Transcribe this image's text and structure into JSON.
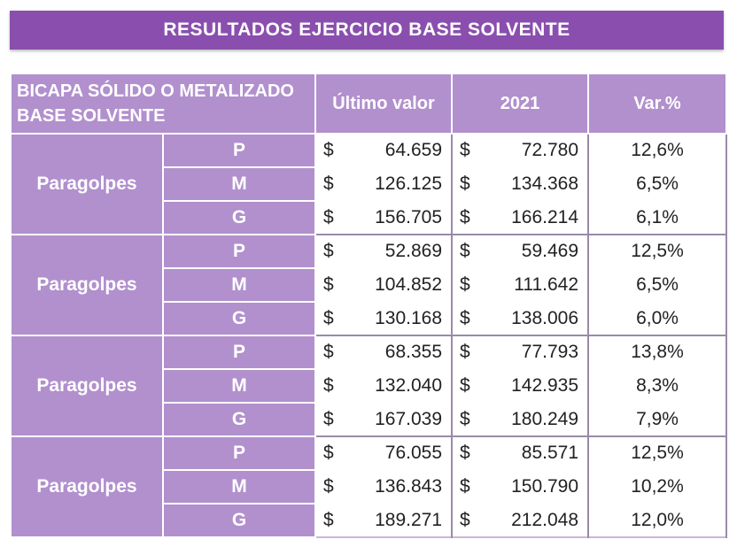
{
  "title": "RESULTADOS EJERCICIO BASE SOLVENTE",
  "table": {
    "header": {
      "title_line1": "BICAPA SÓLIDO O METALIZADO",
      "title_line2": "BASE SOLVENTE",
      "col_last": "Último valor",
      "col_year": "2021",
      "col_var": "Var.%"
    },
    "currency": "$",
    "groups": [
      {
        "label": "Paragolpes",
        "rows": [
          {
            "size": "P",
            "last": "64.659",
            "year": "72.780",
            "var": "12,6%"
          },
          {
            "size": "M",
            "last": "126.125",
            "year": "134.368",
            "var": "6,5%"
          },
          {
            "size": "G",
            "last": "156.705",
            "year": "166.214",
            "var": "6,1%"
          }
        ]
      },
      {
        "label": "Paragolpes",
        "rows": [
          {
            "size": "P",
            "last": "52.869",
            "year": "59.469",
            "var": "12,5%"
          },
          {
            "size": "M",
            "last": "104.852",
            "year": "111.642",
            "var": "6,5%"
          },
          {
            "size": "G",
            "last": "130.168",
            "year": "138.006",
            "var": "6,0%"
          }
        ]
      },
      {
        "label": "Paragolpes",
        "rows": [
          {
            "size": "P",
            "last": "68.355",
            "year": "77.793",
            "var": "13,8%"
          },
          {
            "size": "M",
            "last": "132.040",
            "year": "142.935",
            "var": "8,3%"
          },
          {
            "size": "G",
            "last": "167.039",
            "year": "180.249",
            "var": "7,9%"
          }
        ]
      },
      {
        "label": "Paragolpes",
        "rows": [
          {
            "size": "P",
            "last": "76.055",
            "year": "85.571",
            "var": "12,5%"
          },
          {
            "size": "M",
            "last": "136.843",
            "year": "150.790",
            "var": "10,2%"
          },
          {
            "size": "G",
            "last": "189.271",
            "year": "212.048",
            "var": "12,0%"
          }
        ]
      }
    ]
  }
}
